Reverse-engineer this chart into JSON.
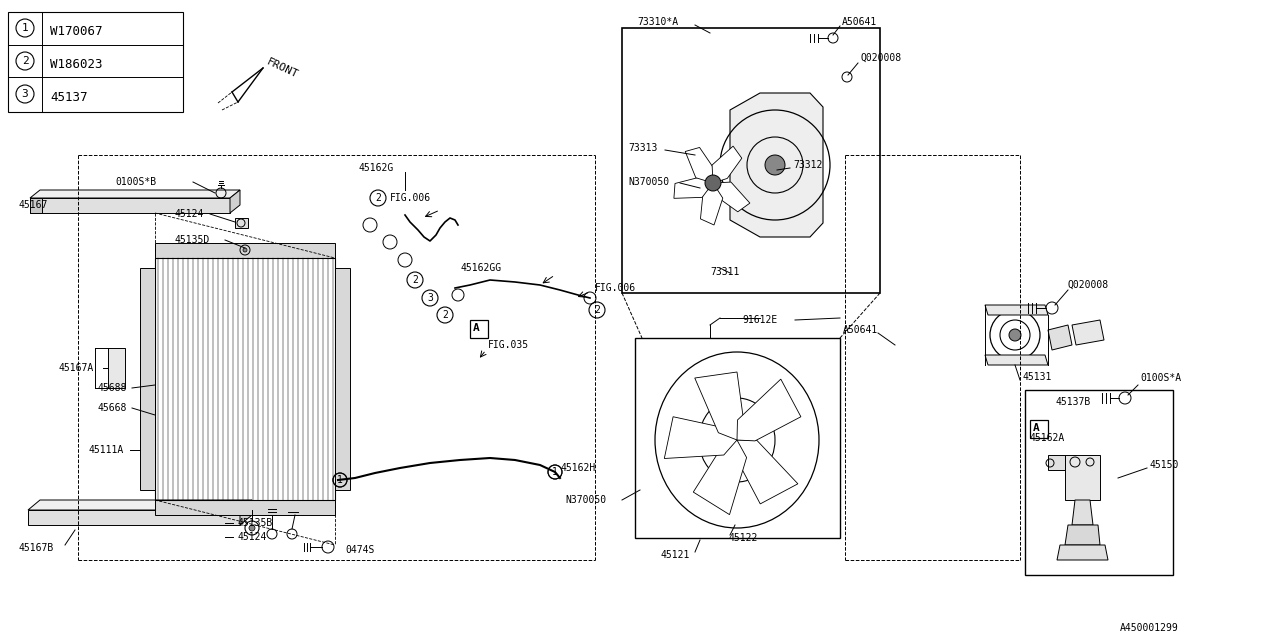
{
  "bg_color": "#ffffff",
  "line_color": "#000000",
  "fig_width": 12.8,
  "fig_height": 6.4,
  "bottom_ref": "A450001299",
  "legend_items": [
    {
      "num": "1",
      "code": "W170067"
    },
    {
      "num": "2",
      "code": "W186023"
    },
    {
      "num": "3",
      "code": "45137"
    }
  ]
}
